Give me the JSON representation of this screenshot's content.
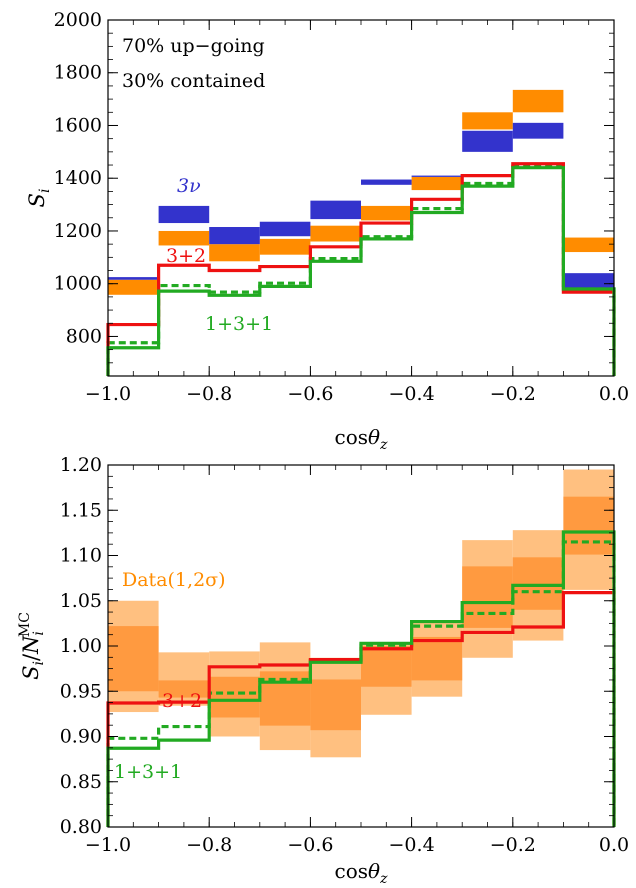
{
  "chart_data": [
    {
      "type": "step",
      "title": "",
      "xlabel": "cosθ_z",
      "ylabel": "S_i",
      "xlim": [
        -1.0,
        0.0
      ],
      "ylim": [
        650,
        2000
      ],
      "x_ticks": [
        -1.0,
        -0.8,
        -0.6,
        -0.4,
        -0.2,
        0.0
      ],
      "x_tick_labels": [
        "−1.0",
        "−0.8",
        "−0.6",
        "−0.4",
        "−0.2",
        "0.0"
      ],
      "y_ticks": [
        800,
        1000,
        1200,
        1400,
        1600,
        1800,
        2000
      ],
      "y_tick_labels": [
        "800",
        "1000",
        "1200",
        "1400",
        "1600",
        "1800",
        "2000"
      ],
      "bin_edges": [
        -1.0,
        -0.9,
        -0.8,
        -0.7,
        -0.6,
        -0.5,
        -0.4,
        -0.3,
        -0.2,
        -0.1,
        0.0
      ],
      "annotations": [
        "70% up−going",
        "30% contained"
      ],
      "bands": [
        {
          "name": "Data",
          "color": "#ff8c00",
          "lower": [
            958,
            1145,
            1085,
            1110,
            1160,
            1240,
            1355,
            1585,
            1650,
            1120
          ],
          "upper": [
            1015,
            1200,
            1150,
            1170,
            1220,
            1295,
            1405,
            1650,
            1735,
            1175
          ]
        },
        {
          "name": "3ν",
          "color": "#3333cc",
          "lower": [
            1015,
            1230,
            1150,
            1180,
            1245,
            1375,
            1405,
            1500,
            1550,
            985
          ],
          "upper": [
            1025,
            1295,
            1215,
            1235,
            1315,
            1395,
            1410,
            1580,
            1610,
            1040
          ]
        }
      ],
      "series": [
        {
          "name": "3+2",
          "color": "#ee1111",
          "style": "solid",
          "values": [
            845,
            1070,
            1050,
            1065,
            1140,
            1230,
            1320,
            1410,
            1455,
            968
          ]
        },
        {
          "name": "1+3+1",
          "color": "#22aa22",
          "style": "solid",
          "values": [
            757,
            972,
            956,
            990,
            1085,
            1170,
            1270,
            1370,
            1440,
            980
          ]
        },
        {
          "name": "",
          "color": "#22aa22",
          "style": "dashed",
          "values": [
            776,
            993,
            968,
            1002,
            1095,
            1178,
            1285,
            1380,
            1445,
            980
          ]
        }
      ],
      "labels": {
        "data": "Data",
        "three_nu": "3ν",
        "three_plus_two": "3+2",
        "one_three_one": "1+3+1"
      }
    },
    {
      "type": "step",
      "title": "",
      "xlabel": "cosθ_z",
      "ylabel": "S_i/N_i^MC",
      "xlim": [
        -1.0,
        0.0
      ],
      "ylim": [
        0.8,
        1.2
      ],
      "x_ticks": [
        -1.0,
        -0.8,
        -0.6,
        -0.4,
        -0.2,
        0.0
      ],
      "x_tick_labels": [
        "−1.0",
        "−0.8",
        "−0.6",
        "−0.4",
        "−0.2",
        "0.0"
      ],
      "y_ticks": [
        0.8,
        0.85,
        0.9,
        0.95,
        1.0,
        1.05,
        1.1,
        1.15,
        1.2
      ],
      "y_tick_labels": [
        "0.80",
        "0.85",
        "0.90",
        "0.95",
        "1.00",
        "1.05",
        "1.10",
        "1.15",
        "1.20"
      ],
      "bin_edges": [
        -1.0,
        -0.9,
        -0.8,
        -0.7,
        -0.6,
        -0.5,
        -0.4,
        -0.3,
        -0.2,
        -0.1,
        0.0
      ],
      "bands": [
        {
          "name": "2σ",
          "color": "#ffc080",
          "lower": [
            0.927,
            0.934,
            0.9,
            0.885,
            0.877,
            0.924,
            0.944,
            0.987,
            1.006,
            1.062
          ],
          "upper": [
            1.05,
            0.993,
            0.994,
            1.004,
            0.987,
            1.004,
            1.026,
            1.117,
            1.128,
            1.195
          ]
        },
        {
          "name": "1σ",
          "color": "#ff9a40",
          "lower": [
            0.95,
            0.943,
            0.921,
            0.912,
            0.907,
            0.955,
            0.962,
            1.02,
            1.04,
            1.101
          ],
          "upper": [
            1.022,
            0.962,
            0.966,
            0.972,
            0.963,
            1.0,
            1.01,
            1.088,
            1.098,
            1.165
          ]
        }
      ],
      "series": [
        {
          "name": "3+2",
          "color": "#ee1111",
          "style": "solid",
          "values": [
            0.937,
            0.938,
            0.977,
            0.979,
            0.985,
            0.997,
            1.006,
            1.015,
            1.021,
            1.059
          ]
        },
        {
          "name": "1+3+1",
          "color": "#22aa22",
          "style": "solid",
          "values": [
            0.887,
            0.896,
            0.94,
            0.96,
            0.982,
            1.003,
            1.027,
            1.048,
            1.067,
            1.126
          ]
        },
        {
          "name": "",
          "color": "#22aa22",
          "style": "dashed",
          "values": [
            0.898,
            0.911,
            0.948,
            0.963,
            0.984,
            1.001,
            1.022,
            1.036,
            1.06,
            1.115
          ]
        }
      ],
      "labels": {
        "data": "Data(1,2σ)",
        "three_plus_two": "3+2",
        "one_three_one": "1+3+1"
      }
    }
  ]
}
